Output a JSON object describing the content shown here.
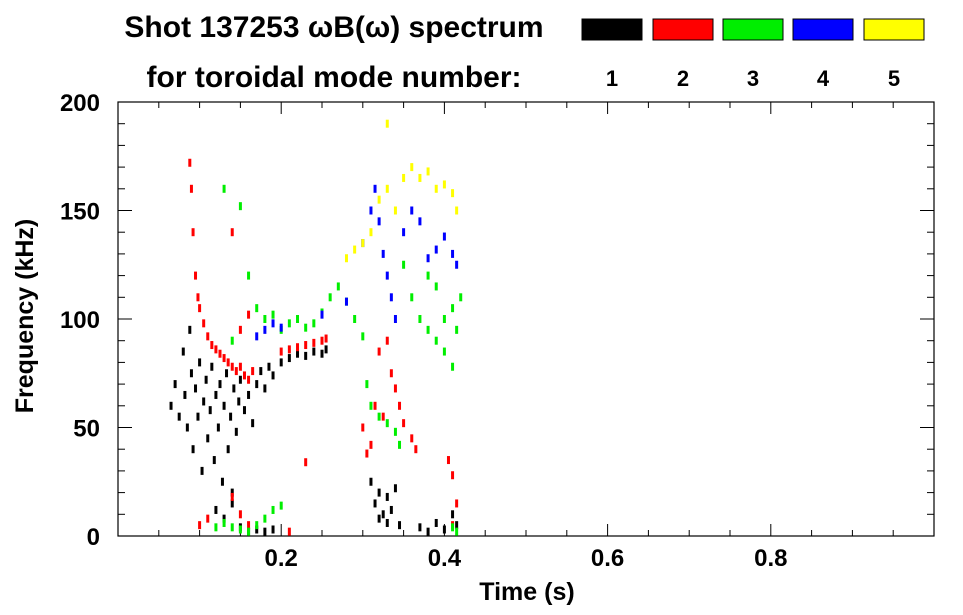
{
  "chart_data": {
    "type": "scatter",
    "title_line1": "Shot 137253 ωB(ω) spectrum",
    "title_line2": "for toroidal mode number:",
    "xlabel": "Time (s)",
    "ylabel": "Frequency (kHz)",
    "xlim": [
      0.0,
      1.0
    ],
    "ylim": [
      0,
      200
    ],
    "x_ticks": [
      0.2,
      0.4,
      0.6,
      0.8
    ],
    "x_tick_labels": [
      "0.2",
      "0.4",
      "0.6",
      "0.8"
    ],
    "y_ticks": [
      0,
      50,
      100,
      150,
      200
    ],
    "y_tick_labels": [
      "0",
      "50",
      "100",
      "150",
      "200"
    ],
    "grid": false,
    "legend_position": "top-right",
    "series": [
      {
        "name": "1",
        "color": "#000000",
        "points": [
          [
            0.065,
            60
          ],
          [
            0.07,
            70
          ],
          [
            0.075,
            55
          ],
          [
            0.08,
            85
          ],
          [
            0.082,
            65
          ],
          [
            0.085,
            50
          ],
          [
            0.088,
            95
          ],
          [
            0.09,
            75
          ],
          [
            0.092,
            40
          ],
          [
            0.095,
            68
          ],
          [
            0.098,
            55
          ],
          [
            0.1,
            80
          ],
          [
            0.103,
            30
          ],
          [
            0.105,
            62
          ],
          [
            0.108,
            72
          ],
          [
            0.11,
            45
          ],
          [
            0.113,
            58
          ],
          [
            0.115,
            78
          ],
          [
            0.118,
            35
          ],
          [
            0.12,
            65
          ],
          [
            0.123,
            50
          ],
          [
            0.125,
            70
          ],
          [
            0.128,
            25
          ],
          [
            0.13,
            60
          ],
          [
            0.133,
            75
          ],
          [
            0.135,
            40
          ],
          [
            0.138,
            55
          ],
          [
            0.14,
            15
          ],
          [
            0.142,
            68
          ],
          [
            0.145,
            48
          ],
          [
            0.148,
            62
          ],
          [
            0.15,
            72
          ],
          [
            0.155,
            58
          ],
          [
            0.16,
            65
          ],
          [
            0.165,
            52
          ],
          [
            0.17,
            70
          ],
          [
            0.175,
            76
          ],
          [
            0.18,
            68
          ],
          [
            0.185,
            78
          ],
          [
            0.19,
            74
          ],
          [
            0.2,
            80
          ],
          [
            0.21,
            82
          ],
          [
            0.22,
            84
          ],
          [
            0.23,
            83
          ],
          [
            0.24,
            85
          ],
          [
            0.25,
            84
          ],
          [
            0.255,
            86
          ],
          [
            0.12,
            12
          ],
          [
            0.13,
            8
          ],
          [
            0.14,
            20
          ],
          [
            0.15,
            4
          ],
          [
            0.16,
            2
          ],
          [
            0.17,
            3
          ],
          [
            0.18,
            2
          ],
          [
            0.19,
            3
          ],
          [
            0.31,
            25
          ],
          [
            0.315,
            15
          ],
          [
            0.32,
            20
          ],
          [
            0.325,
            10
          ],
          [
            0.33,
            18
          ],
          [
            0.335,
            12
          ],
          [
            0.34,
            22
          ],
          [
            0.345,
            5
          ],
          [
            0.32,
            8
          ],
          [
            0.33,
            6
          ],
          [
            0.37,
            4
          ],
          [
            0.38,
            2
          ],
          [
            0.39,
            6
          ],
          [
            0.4,
            3
          ],
          [
            0.41,
            10
          ],
          [
            0.415,
            5
          ]
        ]
      },
      {
        "name": "2",
        "color": "#ff0000",
        "points": [
          [
            0.088,
            172
          ],
          [
            0.09,
            160
          ],
          [
            0.092,
            140
          ],
          [
            0.095,
            120
          ],
          [
            0.098,
            110
          ],
          [
            0.1,
            105
          ],
          [
            0.105,
            98
          ],
          [
            0.11,
            92
          ],
          [
            0.115,
            88
          ],
          [
            0.12,
            86
          ],
          [
            0.125,
            84
          ],
          [
            0.13,
            82
          ],
          [
            0.135,
            80
          ],
          [
            0.14,
            78
          ],
          [
            0.145,
            76
          ],
          [
            0.15,
            78
          ],
          [
            0.155,
            74
          ],
          [
            0.16,
            72
          ],
          [
            0.165,
            76
          ],
          [
            0.14,
            140
          ],
          [
            0.15,
            95
          ],
          [
            0.16,
            102
          ],
          [
            0.2,
            85
          ],
          [
            0.21,
            86
          ],
          [
            0.22,
            87
          ],
          [
            0.23,
            88
          ],
          [
            0.24,
            89
          ],
          [
            0.25,
            90
          ],
          [
            0.255,
            91
          ],
          [
            0.1,
            5
          ],
          [
            0.11,
            8
          ],
          [
            0.14,
            18
          ],
          [
            0.15,
            10
          ],
          [
            0.16,
            5
          ],
          [
            0.21,
            2
          ],
          [
            0.23,
            34
          ],
          [
            0.3,
            50
          ],
          [
            0.305,
            38
          ],
          [
            0.31,
            42
          ],
          [
            0.315,
            60
          ],
          [
            0.32,
            85
          ],
          [
            0.325,
            55
          ],
          [
            0.33,
            90
          ],
          [
            0.335,
            75
          ],
          [
            0.34,
            68
          ],
          [
            0.345,
            60
          ],
          [
            0.35,
            52
          ],
          [
            0.36,
            45
          ],
          [
            0.365,
            40
          ],
          [
            0.405,
            35
          ],
          [
            0.41,
            28
          ],
          [
            0.415,
            15
          ],
          [
            0.41,
            5
          ]
        ]
      },
      {
        "name": "3",
        "color": "#00ee00",
        "points": [
          [
            0.13,
            160
          ],
          [
            0.15,
            152
          ],
          [
            0.16,
            120
          ],
          [
            0.17,
            105
          ],
          [
            0.18,
            100
          ],
          [
            0.19,
            102
          ],
          [
            0.2,
            95
          ],
          [
            0.21,
            98
          ],
          [
            0.22,
            100
          ],
          [
            0.23,
            96
          ],
          [
            0.24,
            98
          ],
          [
            0.25,
            103
          ],
          [
            0.26,
            110
          ],
          [
            0.27,
            115
          ],
          [
            0.28,
            108
          ],
          [
            0.29,
            100
          ],
          [
            0.3,
            92
          ],
          [
            0.305,
            70
          ],
          [
            0.31,
            60
          ],
          [
            0.32,
            55
          ],
          [
            0.33,
            52
          ],
          [
            0.34,
            48
          ],
          [
            0.345,
            42
          ],
          [
            0.35,
            125
          ],
          [
            0.36,
            110
          ],
          [
            0.37,
            100
          ],
          [
            0.38,
            95
          ],
          [
            0.39,
            90
          ],
          [
            0.4,
            100
          ],
          [
            0.41,
            105
          ],
          [
            0.415,
            95
          ],
          [
            0.42,
            110
          ],
          [
            0.38,
            120
          ],
          [
            0.39,
            115
          ],
          [
            0.4,
            85
          ],
          [
            0.41,
            78
          ],
          [
            0.12,
            4
          ],
          [
            0.13,
            6
          ],
          [
            0.14,
            4
          ],
          [
            0.15,
            3
          ],
          [
            0.16,
            2
          ],
          [
            0.17,
            5
          ],
          [
            0.18,
            8
          ],
          [
            0.19,
            12
          ],
          [
            0.2,
            14
          ],
          [
            0.41,
            4
          ],
          [
            0.415,
            2
          ],
          [
            0.14,
            90
          ]
        ]
      },
      {
        "name": "4",
        "color": "#0000ff",
        "points": [
          [
            0.17,
            92
          ],
          [
            0.18,
            95
          ],
          [
            0.19,
            98
          ],
          [
            0.2,
            96
          ],
          [
            0.25,
            102
          ],
          [
            0.3,
            135
          ],
          [
            0.31,
            150
          ],
          [
            0.315,
            160
          ],
          [
            0.32,
            145
          ],
          [
            0.325,
            130
          ],
          [
            0.33,
            120
          ],
          [
            0.335,
            110
          ],
          [
            0.34,
            100
          ],
          [
            0.35,
            140
          ],
          [
            0.36,
            150
          ],
          [
            0.37,
            145
          ],
          [
            0.38,
            128
          ],
          [
            0.39,
            132
          ],
          [
            0.4,
            138
          ],
          [
            0.41,
            130
          ],
          [
            0.415,
            125
          ],
          [
            0.28,
            108
          ]
        ]
      },
      {
        "name": "5",
        "color": "#ffff00",
        "points": [
          [
            0.3,
            135
          ],
          [
            0.31,
            140
          ],
          [
            0.32,
            155
          ],
          [
            0.33,
            160
          ],
          [
            0.34,
            150
          ],
          [
            0.35,
            165
          ],
          [
            0.36,
            170
          ],
          [
            0.37,
            165
          ],
          [
            0.38,
            168
          ],
          [
            0.39,
            160
          ],
          [
            0.4,
            162
          ],
          [
            0.41,
            158
          ],
          [
            0.415,
            150
          ],
          [
            0.33,
            190
          ],
          [
            0.28,
            128
          ],
          [
            0.29,
            132
          ]
        ]
      }
    ]
  }
}
